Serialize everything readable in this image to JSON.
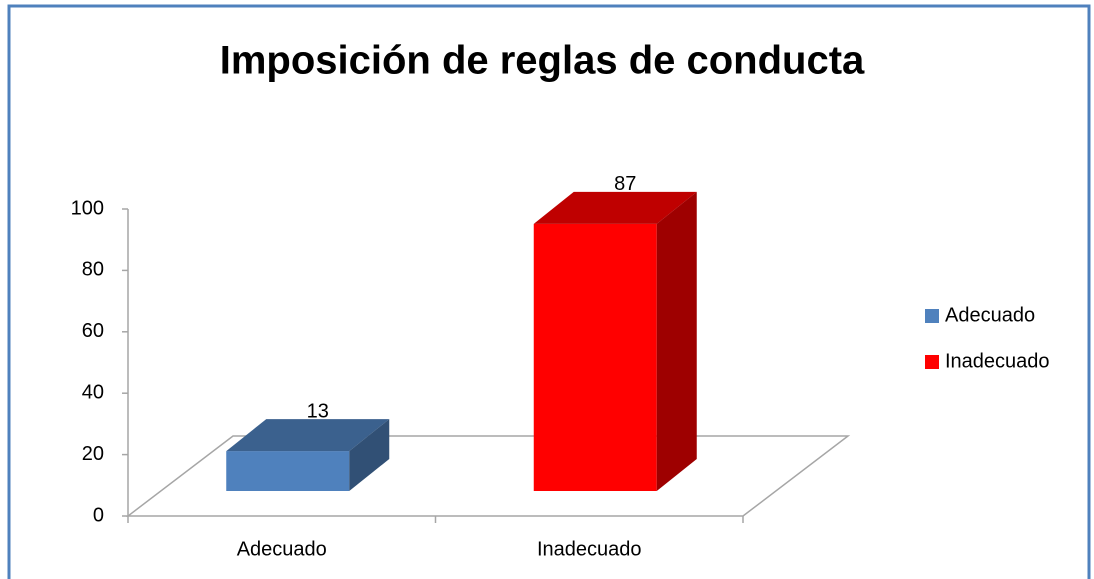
{
  "chart_data": {
    "type": "bar",
    "title": "Imposición de reglas de conducta",
    "categories": [
      "Adecuado",
      "Inadecuado"
    ],
    "values": [
      13,
      87
    ],
    "colors": [
      "#4f81bd",
      "#ff0000"
    ],
    "ylim": [
      0,
      100
    ],
    "yticks": [
      0,
      20,
      40,
      60,
      80,
      100
    ],
    "legend": "right"
  }
}
